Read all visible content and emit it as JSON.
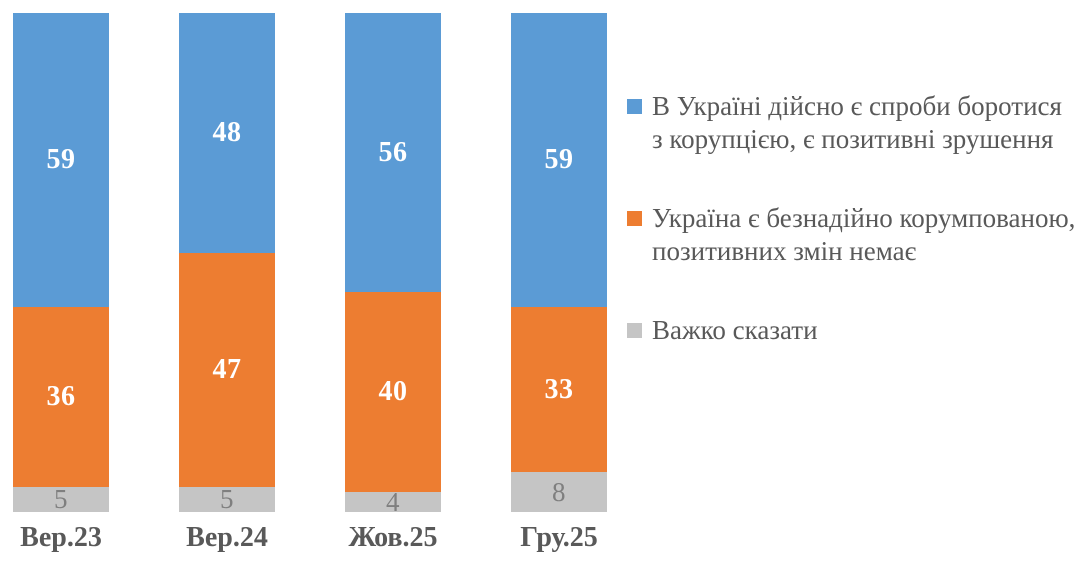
{
  "chart_data": {
    "type": "bar",
    "stacked": true,
    "orientation": "vertical",
    "title": "",
    "xlabel": "",
    "ylabel": "",
    "ylim": [
      0,
      100
    ],
    "grid": false,
    "legend_position": "right",
    "categories": [
      "Вер.23",
      "Вер.24",
      "Жов.25",
      "Гру.25"
    ],
    "series": [
      {
        "name": "В Україні дійсно є спроби боротися з корупцією, є позитивні зрушення",
        "values": [
          59,
          48,
          56,
          59
        ],
        "color": "#5B9BD5",
        "label_color": "#ffffff",
        "label_style": "bold"
      },
      {
        "name": "Україна є безнадійно корумпованою, позитивних змін немає",
        "values": [
          36,
          47,
          40,
          33
        ],
        "color": "#ED7D31",
        "label_color": "#ffffff",
        "label_style": "bold"
      },
      {
        "name": "Важко сказати",
        "values": [
          5,
          5,
          4,
          8
        ],
        "color": "#C5C5C5",
        "label_color": "#7F7F7F",
        "label_style": "normal"
      }
    ]
  },
  "colors": {
    "background": "#ffffff",
    "axis_label_text": "#595959",
    "legend_text": "#595959",
    "series_blue": "#5B9BD5",
    "series_orange": "#ED7D31",
    "series_gray": "#C5C5C5",
    "gray_value_text": "#7F7F7F",
    "white_value_text": "#ffffff"
  }
}
